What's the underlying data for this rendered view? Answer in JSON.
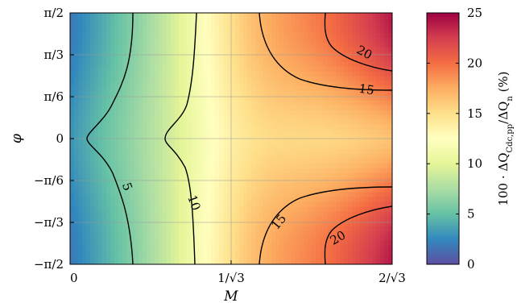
{
  "chart_data": {
    "type": "heatmap",
    "subtype": "filled contour with contour lines",
    "title": "",
    "xlabel": "M",
    "ylabel": "φ",
    "colorbar_label": "100 · ΔQ_Cdc,pp / ΔQ_n (%)",
    "colorbar_label_parts": {
      "prefix": "100 · ΔQ",
      "sub1": "Cdc,pp",
      "mid": "/ΔQ",
      "sub2": "n",
      "suffix": " (%)"
    },
    "colormap": "Spectral (reversed)",
    "xlim": [
      0,
      1.1547
    ],
    "ylim": [
      -1.5708,
      1.5708
    ],
    "x_ticks": [
      {
        "value": 0,
        "label": "0"
      },
      {
        "value": 0.57735,
        "label": "1/√3"
      },
      {
        "value": 1.1547,
        "label": "2/√3"
      }
    ],
    "y_ticks": [
      {
        "value": -1.5708,
        "label": "−π/2"
      },
      {
        "value": -1.0472,
        "label": "−π/3"
      },
      {
        "value": -0.5236,
        "label": "−π/6"
      },
      {
        "value": 0,
        "label": "0"
      },
      {
        "value": 0.5236,
        "label": "π/6"
      },
      {
        "value": 1.0472,
        "label": "π/3"
      },
      {
        "value": 1.5708,
        "label": "π/2"
      }
    ],
    "colorbar": {
      "min": 0,
      "max": 25,
      "ticks": [
        {
          "value": 0,
          "label": "0"
        },
        {
          "value": 5,
          "label": "5"
        },
        {
          "value": 10,
          "label": "10"
        },
        {
          "value": 15,
          "label": "15"
        },
        {
          "value": 20,
          "label": "20"
        },
        {
          "value": 25,
          "label": "25"
        }
      ]
    },
    "grid": true,
    "contour_levels": [
      5,
      10,
      15,
      20,
      15,
      20,
      10,
      5
    ],
    "contour_labels": [
      {
        "text": "5"
      },
      {
        "text": "10"
      },
      {
        "text": "15"
      },
      {
        "text": "20"
      },
      {
        "text": "15"
      },
      {
        "text": "20"
      }
    ]
  }
}
